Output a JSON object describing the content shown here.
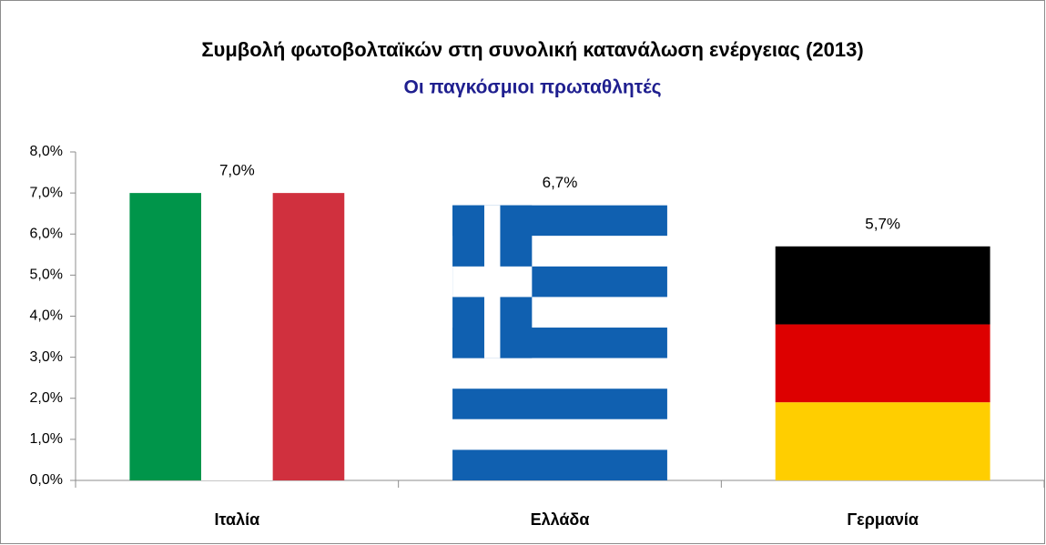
{
  "chart_data": {
    "type": "bar",
    "title": "Συμβολή φωτοβολταϊκών στη συνολική κατανάλωση ενέργειας (2013)",
    "subtitle": "Οι παγκόσμιοι πρωταθλητές",
    "categories": [
      "Ιταλία",
      "Ελλάδα",
      "Γερμανία"
    ],
    "values": [
      7.0,
      6.7,
      5.7
    ],
    "value_labels": [
      "7,0%",
      "6,7%",
      "5,7%"
    ],
    "ylim": [
      0,
      8
    ],
    "yticks": [
      {
        "value": 0,
        "label": "0,0%"
      },
      {
        "value": 1,
        "label": "1,0%"
      },
      {
        "value": 2,
        "label": "2,0%"
      },
      {
        "value": 3,
        "label": "3,0%"
      },
      {
        "value": 4,
        "label": "4,0%"
      },
      {
        "value": 5,
        "label": "5,0%"
      },
      {
        "value": 6,
        "label": "6,0%"
      },
      {
        "value": 7,
        "label": "7,0%"
      },
      {
        "value": 8,
        "label": "8,0%"
      }
    ],
    "grid": false
  }
}
